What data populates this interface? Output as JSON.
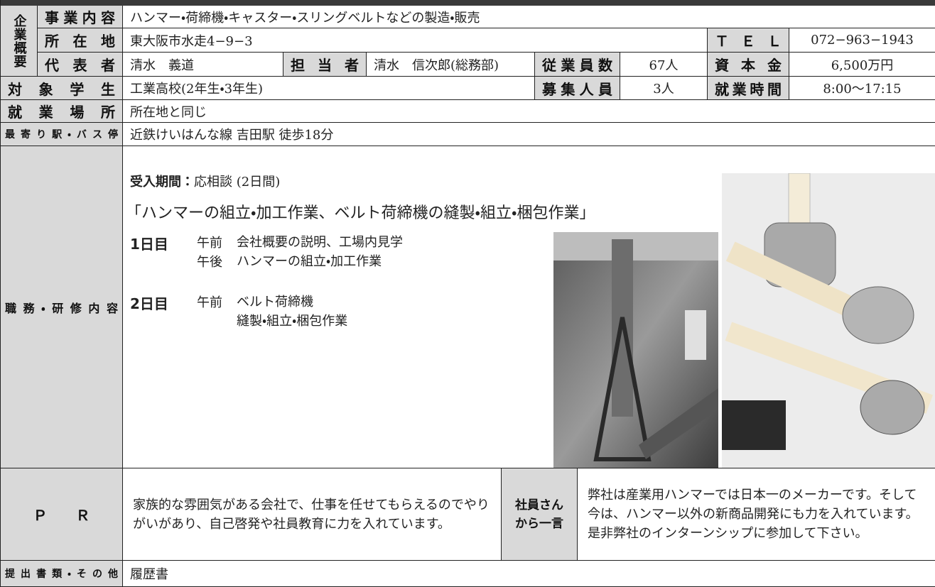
{
  "company_overview_label": "企業概要",
  "business": {
    "label": "事業内容",
    "value": "ハンマー・荷締機・キャスター・スリングベルトなどの製造・販売"
  },
  "address": {
    "label": "所在地",
    "value": "東大阪市水走4−9−3"
  },
  "tel": {
    "label": "ＴＥＬ",
    "value": "072−963−1943"
  },
  "representative": {
    "label": "代表者",
    "value": "清水　義道"
  },
  "contact": {
    "label": "担当者",
    "value": "清水　信次郎(総務部)"
  },
  "employees": {
    "label": "従業員数",
    "value": "67人"
  },
  "capital": {
    "label": "資本金",
    "value": "6,500万円"
  },
  "target_students": {
    "label": "対象学生",
    "value": "工業高校(2年生・3年生)"
  },
  "recruit_count": {
    "label": "募集人員",
    "value": "3人"
  },
  "work_hours": {
    "label": "就業時間",
    "value": "8:00〜17:15"
  },
  "work_location": {
    "label": "就業場所",
    "value": "所在地と同じ"
  },
  "nearest_station": {
    "label": "最寄り駅・バス停",
    "value": "近鉄けいはんな線 吉田駅 徒歩18分"
  },
  "training": {
    "label": "職務・研修内容",
    "period_label": "受入期間：",
    "period": "応相談 (2日間)",
    "theme": "「ハンマーの組立・加工作業、ベルト荷締機の縫製・組立・梱包作業」",
    "days": [
      {
        "day": "1日目",
        "items": [
          {
            "time": "午前",
            "task": "会社概要の説明、工場内見学"
          },
          {
            "time": "午後",
            "task": "ハンマーの組立・加工作業"
          }
        ]
      },
      {
        "day": "2日目",
        "items": [
          {
            "time": "午前",
            "task": "ベルト荷締機\n縫製・組立・梱包作業"
          }
        ]
      }
    ]
  },
  "pr": {
    "label": "Ｐ　　Ｒ",
    "value": "家族的な雰囲気がある会社で、仕事を任せてもらえるのでやりがいがあり、自己啓発や社員教育に力を入れています。"
  },
  "employee_word": {
    "label": "社員さんから一言",
    "value": "弊社は産業用ハンマーでは日本一のメーカーです。そして今は、ハンマー以外の新商品開発にも力を入れています。是非弊社のインターンシップに参加して下さい。"
  },
  "documents": {
    "label": "提出書類・その他",
    "value": "履歴書"
  }
}
